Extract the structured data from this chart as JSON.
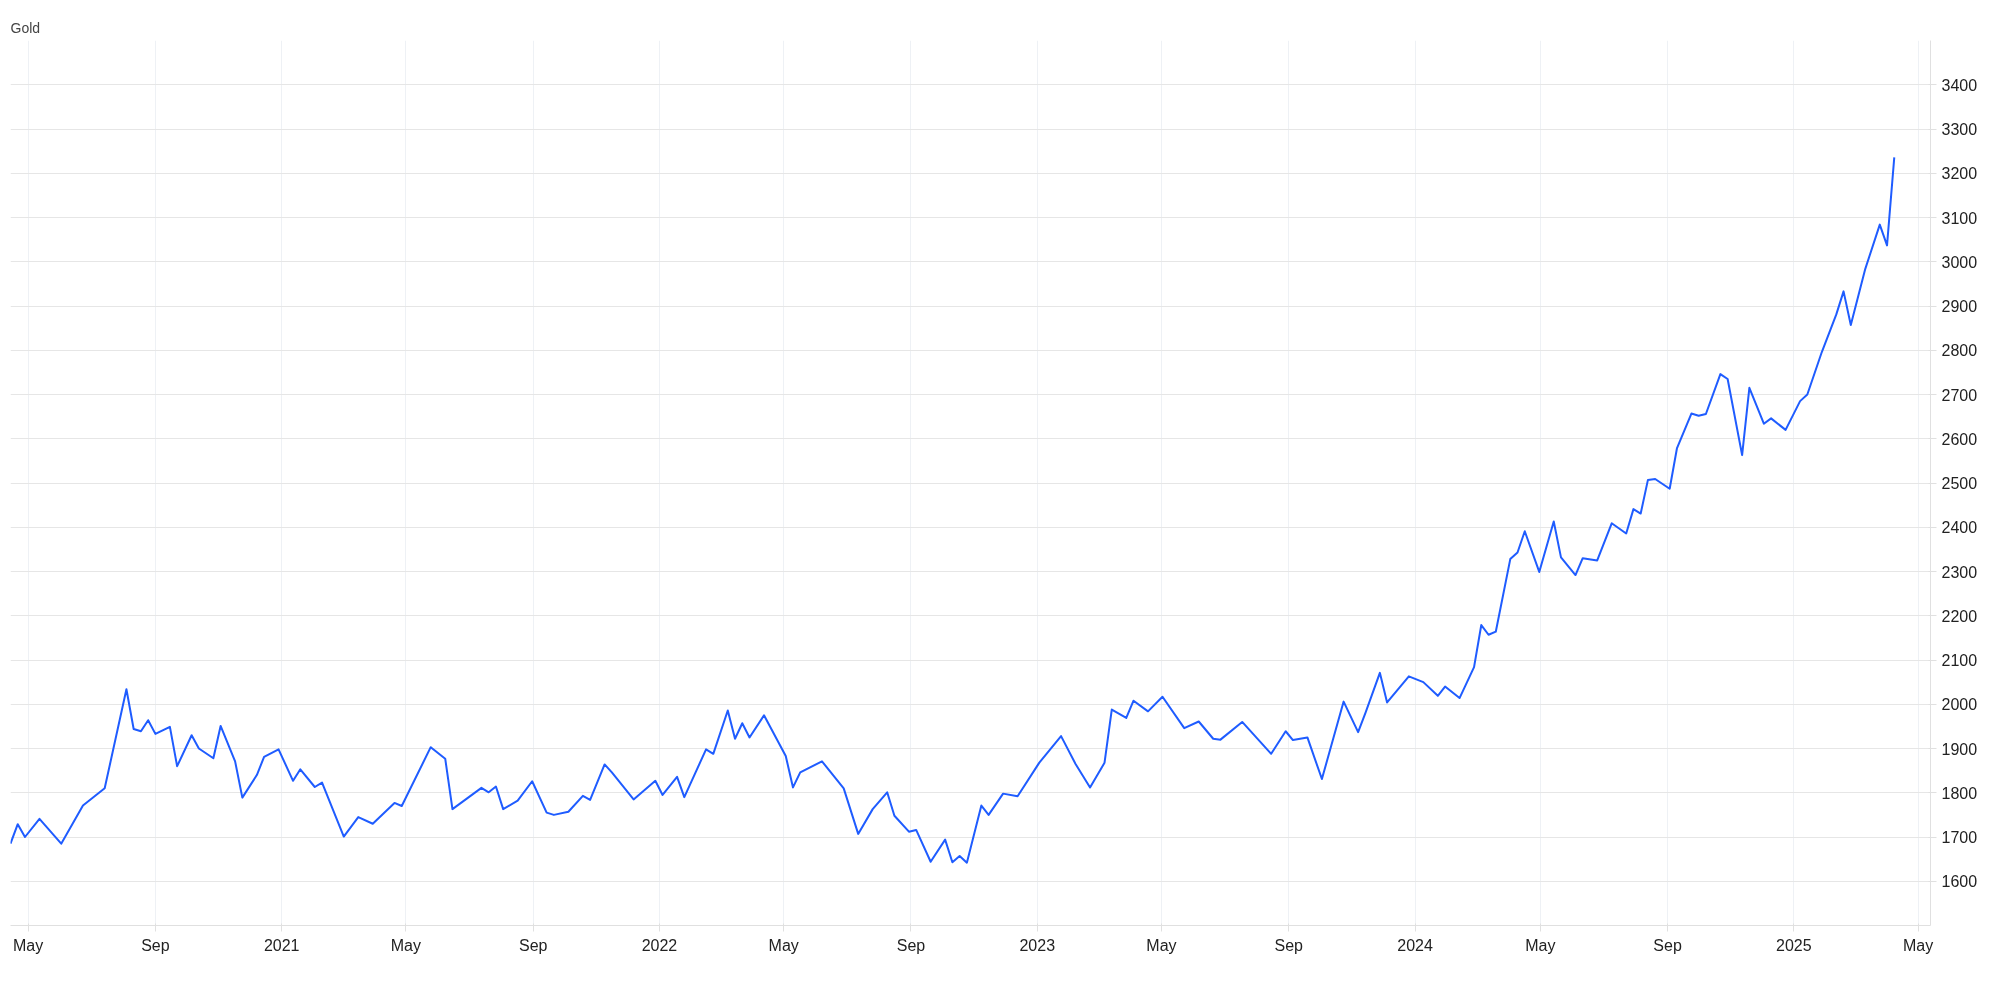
{
  "chart_data": {
    "type": "line",
    "title": "Gold",
    "x": [
      "2020-04-14",
      "2020-04-21",
      "2020-04-28",
      "2020-05-12",
      "2020-06-02",
      "2020-06-23",
      "2020-07-14",
      "2020-08-04",
      "2020-08-11",
      "2020-08-18",
      "2020-08-25",
      "2020-09-01",
      "2020-09-15",
      "2020-09-22",
      "2020-10-06",
      "2020-10-13",
      "2020-10-27",
      "2020-11-03",
      "2020-11-17",
      "2020-11-24",
      "2020-12-08",
      "2020-12-15",
      "2020-12-29",
      "2021-01-12",
      "2021-01-19",
      "2021-02-02",
      "2021-02-09",
      "2021-03-02",
      "2021-03-16",
      "2021-03-30",
      "2021-04-20",
      "2021-04-27",
      "2021-05-25",
      "2021-06-08",
      "2021-06-15",
      "2021-07-13",
      "2021-07-20",
      "2021-07-27",
      "2021-08-03",
      "2021-08-17",
      "2021-08-31",
      "2021-09-14",
      "2021-09-21",
      "2021-10-05",
      "2021-10-19",
      "2021-10-26",
      "2021-11-09",
      "2021-11-16",
      "2021-12-07",
      "2021-12-28",
      "2022-01-04",
      "2022-01-18",
      "2022-01-25",
      "2022-02-15",
      "2022-02-22",
      "2022-03-08",
      "2022-03-15",
      "2022-03-22",
      "2022-03-29",
      "2022-04-12",
      "2022-05-03",
      "2022-05-10",
      "2022-05-17",
      "2022-06-07",
      "2022-06-28",
      "2022-07-12",
      "2022-07-26",
      "2022-08-09",
      "2022-08-16",
      "2022-08-30",
      "2022-09-06",
      "2022-09-20",
      "2022-10-04",
      "2022-10-11",
      "2022-10-18",
      "2022-10-25",
      "2022-11-08",
      "2022-11-15",
      "2022-11-29",
      "2022-12-13",
      "2023-01-03",
      "2023-01-24",
      "2023-02-07",
      "2023-02-21",
      "2023-03-07",
      "2023-03-14",
      "2023-03-28",
      "2023-04-04",
      "2023-04-18",
      "2023-05-02",
      "2023-05-23",
      "2023-06-06",
      "2023-06-20",
      "2023-06-27",
      "2023-07-18",
      "2023-08-15",
      "2023-08-29",
      "2023-09-05",
      "2023-09-19",
      "2023-10-03",
      "2023-10-24",
      "2023-11-07",
      "2023-11-14",
      "2023-11-28",
      "2023-12-05",
      "2023-12-26",
      "2024-01-09",
      "2024-01-23",
      "2024-01-30",
      "2024-02-13",
      "2024-02-27",
      "2024-03-05",
      "2024-03-12",
      "2024-03-19",
      "2024-04-02",
      "2024-04-09",
      "2024-04-16",
      "2024-04-30",
      "2024-05-14",
      "2024-05-21",
      "2024-06-04",
      "2024-06-11",
      "2024-06-25",
      "2024-07-09",
      "2024-07-23",
      "2024-07-30",
      "2024-08-06",
      "2024-08-13",
      "2024-08-20",
      "2024-09-03",
      "2024-09-10",
      "2024-09-24",
      "2024-10-01",
      "2024-10-08",
      "2024-10-22",
      "2024-10-29",
      "2024-11-12",
      "2024-11-19",
      "2024-12-03",
      "2024-12-10",
      "2024-12-24",
      "2025-01-07",
      "2025-01-14",
      "2025-01-28",
      "2025-02-11",
      "2025-02-18",
      "2025-02-25",
      "2025-03-11",
      "2025-03-25",
      "2025-04-01",
      "2025-04-08"
    ],
    "series": [
      {
        "color": "#1f5cff",
        "values": [
          1685,
          1729,
          1700,
          1741,
          1685,
          1771,
          1810,
          2034,
          1944,
          1939,
          1964,
          1933,
          1949,
          1860,
          1930,
          1900,
          1878,
          1951,
          1871,
          1789,
          1840,
          1881,
          1898,
          1827,
          1853,
          1813,
          1823,
          1701,
          1745,
          1730,
          1777,
          1770,
          1903,
          1877,
          1763,
          1811,
          1801,
          1814,
          1763,
          1782,
          1826,
          1755,
          1750,
          1757,
          1793,
          1784,
          1864,
          1846,
          1785,
          1827,
          1795,
          1836,
          1790,
          1898,
          1888,
          1986,
          1922,
          1957,
          1925,
          1975,
          1883,
          1812,
          1846,
          1871,
          1810,
          1707,
          1763,
          1801,
          1748,
          1712,
          1716,
          1644,
          1694,
          1643,
          1657,
          1642,
          1771,
          1750,
          1798,
          1792,
          1868,
          1928,
          1865,
          1812,
          1868,
          1988,
          1969,
          2008,
          1984,
          2017,
          1946,
          1961,
          1922,
          1920,
          1960,
          1888,
          1939,
          1919,
          1925,
          1831,
          2006,
          1937,
          1980,
          2071,
          2004,
          2063,
          2050,
          2019,
          2040,
          2014,
          2084,
          2179,
          2157,
          2164,
          2328,
          2343,
          2391,
          2299,
          2413,
          2332,
          2292,
          2330,
          2325,
          2409,
          2386,
          2441,
          2431,
          2507,
          2509,
          2487,
          2578,
          2657,
          2652,
          2656,
          2746,
          2735,
          2563,
          2715,
          2634,
          2646,
          2620,
          2685,
          2700,
          2796,
          2881,
          2933,
          2857,
          2984,
          3084,
          3037,
          3236
        ]
      }
    ],
    "xlim": [
      "2020-04-14",
      "2025-05-13"
    ],
    "xticks": [
      {
        "value": "2020-05-01",
        "label": "May"
      },
      {
        "value": "2020-09-01",
        "label": "Sep"
      },
      {
        "value": "2021-01-01",
        "label": "2021"
      },
      {
        "value": "2021-05-01",
        "label": "May"
      },
      {
        "value": "2021-09-01",
        "label": "Sep"
      },
      {
        "value": "2022-01-01",
        "label": "2022"
      },
      {
        "value": "2022-05-01",
        "label": "May"
      },
      {
        "value": "2022-09-01",
        "label": "Sep"
      },
      {
        "value": "2023-01-01",
        "label": "2023"
      },
      {
        "value": "2023-05-01",
        "label": "May"
      },
      {
        "value": "2023-09-01",
        "label": "Sep"
      },
      {
        "value": "2024-01-01",
        "label": "2024"
      },
      {
        "value": "2024-05-01",
        "label": "May"
      },
      {
        "value": "2024-09-01",
        "label": "Sep"
      },
      {
        "value": "2025-01-01",
        "label": "2025"
      },
      {
        "value": "2025-05-01",
        "label": "May"
      }
    ],
    "ylim": [
      1500,
      3500
    ],
    "yticks": [
      1600,
      1700,
      1800,
      1900,
      2000,
      2100,
      2200,
      2300,
      2400,
      2500,
      2600,
      2700,
      2800,
      2900,
      3000,
      3100,
      3200,
      3300,
      3400
    ],
    "grid": true,
    "line_style": "solid"
  }
}
